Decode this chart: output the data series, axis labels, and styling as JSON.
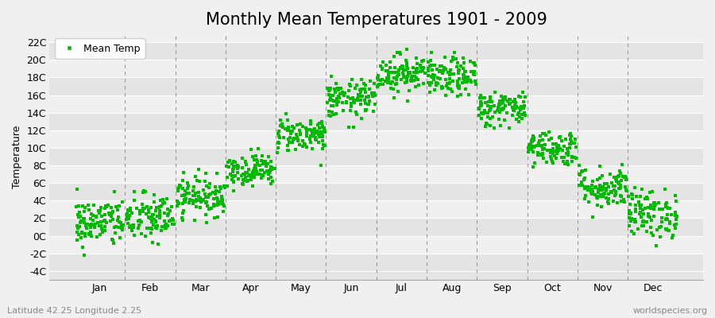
{
  "title": "Monthly Mean Temperatures 1901 - 2009",
  "ylabel": "Temperature",
  "xlabel_labels": [
    "Jan",
    "Feb",
    "Mar",
    "Apr",
    "May",
    "Jun",
    "Jul",
    "Aug",
    "Sep",
    "Oct",
    "Nov",
    "Dec"
  ],
  "ytick_labels": [
    "-4C",
    "-2C",
    "0C",
    "2C",
    "4C",
    "6C",
    "8C",
    "10C",
    "12C",
    "14C",
    "16C",
    "18C",
    "20C",
    "22C"
  ],
  "ytick_values": [
    -4,
    -2,
    0,
    2,
    4,
    6,
    8,
    10,
    12,
    14,
    16,
    18,
    20,
    22
  ],
  "ylim": [
    -5,
    23
  ],
  "xlim": [
    -0.5,
    12.5
  ],
  "dot_color": "#00bb00",
  "bg_light": "#f0f0f0",
  "bg_dark": "#e4e4e4",
  "vline_color": "#999999",
  "legend_label": "Mean Temp",
  "footer_left": "Latitude 42.25 Longitude 2.25",
  "footer_right": "worldspecies.org",
  "title_fontsize": 15,
  "axis_fontsize": 9,
  "footer_fontsize": 8,
  "n_years": 109,
  "monthly_means": [
    1.5,
    2.0,
    4.5,
    7.5,
    11.5,
    15.5,
    18.5,
    18.0,
    14.5,
    10.0,
    5.5,
    2.5
  ],
  "monthly_stds": [
    1.4,
    1.4,
    1.1,
    0.9,
    1.0,
    1.1,
    1.1,
    1.1,
    1.0,
    1.0,
    1.2,
    1.4
  ],
  "seed": 42
}
